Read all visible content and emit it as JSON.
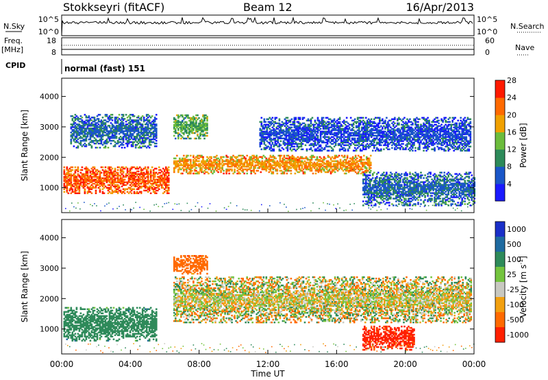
{
  "header": {
    "station": "Stokkseyri (fitACF)",
    "beam": "Beam 12",
    "date": "16/Apr/2013"
  },
  "top_panels": {
    "nsky_label": "N.Sky",
    "nsky_tick_top": "10^5",
    "nsky_tick_bottom": "10^0",
    "nsearch_label": "N.Search",
    "nsearch_tick_top": "10^5",
    "nsearch_tick_bottom": "10^0",
    "freq_label": "Freq.",
    "freq_unit": "[MHz]",
    "freq_tick_top": "18",
    "freq_tick_bottom": "8",
    "nave_label": "Nave",
    "nave_tick_top": "60",
    "nave_tick_bottom": "0",
    "cpid_label": "CPID",
    "cpid_value": "normal (fast) 151"
  },
  "chart_data": [
    {
      "type": "heatmap",
      "panel": "power",
      "ylabel": "Slant Range [km]",
      "xlabel": "",
      "x_ticks": [
        "00:00",
        "04:00",
        "08:00",
        "12:00",
        "16:00",
        "20:00",
        "00:00"
      ],
      "y_ticks": [
        1000,
        2000,
        3000,
        4000
      ],
      "ylim": [
        180,
        4600
      ],
      "xlim_hours": [
        0,
        24
      ],
      "colorbar": {
        "label": "Power [dB]",
        "ticks": [
          "4",
          "8",
          "12",
          "16",
          "20",
          "24",
          "28"
        ],
        "range": [
          0,
          32
        ],
        "colors": [
          "#1a1aff",
          "#1a56c8",
          "#2d8a5a",
          "#6cbc3c",
          "#f0a000",
          "#ff6a00",
          "#ff1a00"
        ]
      },
      "features": [
        {
          "desc": "echo band",
          "t": [
            0.1,
            6.2
          ],
          "range_km": [
            800,
            1700
          ],
          "power_db": 26
        },
        {
          "desc": "echo band",
          "t": [
            6.5,
            18.0
          ],
          "range_km": [
            1450,
            2050
          ],
          "power_db": 22
        },
        {
          "desc": "echo band",
          "t": [
            0.5,
            5.5
          ],
          "range_km": [
            2300,
            3400
          ],
          "power_db": 8
        },
        {
          "desc": "echo band",
          "t": [
            6.5,
            8.5
          ],
          "range_km": [
            2600,
            3400
          ],
          "power_db": 14
        },
        {
          "desc": "echo band",
          "t": [
            11.5,
            23.8
          ],
          "range_km": [
            2200,
            3300
          ],
          "power_db": 6
        },
        {
          "desc": "echo band",
          "t": [
            17.5,
            24.0
          ],
          "range_km": [
            400,
            1500
          ],
          "power_db": 8
        }
      ]
    },
    {
      "type": "heatmap",
      "panel": "velocity",
      "ylabel": "Slant Range [km]",
      "xlabel": "Time UT",
      "x_ticks": [
        "00:00",
        "04:00",
        "08:00",
        "12:00",
        "16:00",
        "20:00",
        "00:00"
      ],
      "y_ticks": [
        1000,
        2000,
        3000,
        4000
      ],
      "ylim": [
        180,
        4600
      ],
      "xlim_hours": [
        0,
        24
      ],
      "colorbar": {
        "label": "Velocity [m s",
        "label_exp": "-1",
        "label_close": "]",
        "ticks": [
          "1000",
          "500",
          "100",
          "25",
          "-25",
          "-100",
          "-500",
          "-1000"
        ],
        "colors": [
          "#1a2fc8",
          "#1e6aa0",
          "#2e8a5a",
          "#74c43e",
          "#c8c8c0",
          "#f2a010",
          "#ff6a00",
          "#ff2000"
        ]
      },
      "features": [
        {
          "desc": "echo band",
          "t": [
            0.1,
            5.5
          ],
          "range_km": [
            600,
            1700
          ],
          "velocity": 300
        },
        {
          "desc": "echo band",
          "t": [
            6.5,
            23.8
          ],
          "range_km": [
            1200,
            2700
          ],
          "velocity": 0
        },
        {
          "desc": "echo band",
          "t": [
            6.5,
            8.5
          ],
          "range_km": [
            2800,
            3400
          ],
          "velocity": -300
        },
        {
          "desc": "echo band",
          "t": [
            17.5,
            20.5
          ],
          "range_km": [
            300,
            1100
          ],
          "velocity": -600
        }
      ]
    }
  ]
}
